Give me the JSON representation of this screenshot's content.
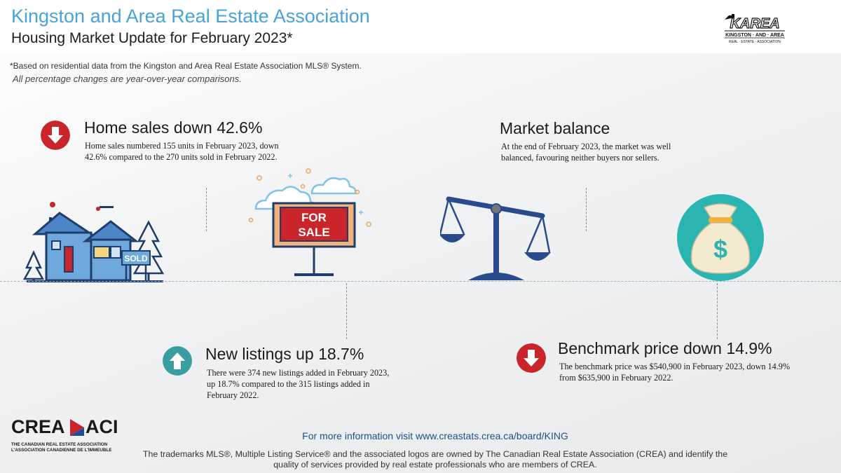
{
  "header": {
    "title": "Kingston and Area Real Estate Association",
    "subtitle": "Housing Market Update for February 2023*",
    "logo": {
      "wordmark": "KAREA",
      "line1": "KINGSTON · AND · AREA",
      "line2": "REAL · ESTATE · ASSOCIATION"
    }
  },
  "notes": {
    "basis": "*Based on residential data from the Kingston and Area Real Estate Association MLS® System.",
    "comparison": "All percentage changes are year-over-year comparisons."
  },
  "stats": {
    "home_sales": {
      "heading": "Home sales down 42.6%",
      "text": "Home sales numbered 155 units in February 2023, down 42.6% compared to the 270 units sold in February 2022.",
      "direction": "down",
      "icon": "arrow-down-icon"
    },
    "market_balance": {
      "heading": "Market balance",
      "text": "At the end of February 2023, the market was well balanced, favouring neither buyers nor sellers.",
      "icon": "balance-scale-icon"
    },
    "new_listings": {
      "heading": "New listings up 18.7%",
      "text": "There were 374 new listings added in February 2023, up 18.7% compared to the 315 listings added in February 2022.",
      "direction": "up",
      "icon": "arrow-up-icon"
    },
    "benchmark_price": {
      "heading": "Benchmark price down 14.9%",
      "text": "The benchmark price was $540,900 in February 2023, down 14.9% from $635,900 in February 2022.",
      "direction": "down",
      "icon": "arrow-down-icon"
    }
  },
  "illustrations": {
    "house_sign": "SOLD",
    "for_sale_sign_line1": "FOR",
    "for_sale_sign_line2": "SALE",
    "money_bag_symbol": "$"
  },
  "footer": {
    "crea_logo": {
      "left": "CREA",
      "right": "ACI",
      "line1": "THE CANADIAN REAL ESTATE ASSOCIATION",
      "line2": "L'ASSOCIATION CANADIENNE DE L'IMMEUBLE"
    },
    "more_info": "For more information visit www.creastats.crea.ca/board/KING",
    "trademark": "The trademarks MLS®, Multiple Listing Service® and the associated logos are owned by The Canadian Real Estate Association (CREA) and identify the quality of services provided by real estate professionals who are members of CREA."
  },
  "colors": {
    "title_blue": "#4aa3d6",
    "down_red": "#c9252b",
    "up_teal": "#3a9ea0",
    "scale_navy": "#2a4a8e",
    "bag_teal": "#2ab5b0",
    "link_blue": "#1f4f8b"
  }
}
